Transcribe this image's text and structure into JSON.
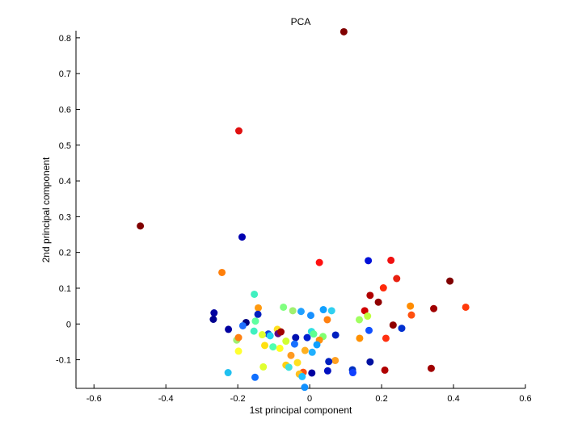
{
  "chart_data": {
    "type": "scatter",
    "title": "PCA",
    "xlabel": "1st principal component",
    "ylabel": "2nd principal component",
    "xlim": [
      -0.65,
      0.6
    ],
    "ylim": [
      -0.18,
      0.82
    ],
    "grid": false,
    "x_ticks": [
      -0.6,
      -0.4,
      -0.2,
      0,
      0.2,
      0.4,
      0.6
    ],
    "x_tick_labels": [
      "-0.6",
      "-0.4",
      "-0.2",
      "0",
      "0.2",
      "0.4",
      "0.6"
    ],
    "y_ticks": [
      -0.1,
      0,
      0.1,
      0.2,
      0.3,
      0.4,
      0.5,
      0.6,
      0.7,
      0.8
    ],
    "y_tick_labels": [
      "-0.1",
      "0",
      "0.1",
      "0.2",
      "0.3",
      "0.4",
      "0.5",
      "0.6",
      "0.7",
      "0.8"
    ],
    "points": [
      {
        "x": 0.095,
        "y": 0.817,
        "color": "#800000"
      },
      {
        "x": -0.197,
        "y": 0.54,
        "color": "#e01010"
      },
      {
        "x": -0.471,
        "y": 0.274,
        "color": "#800000"
      },
      {
        "x": -0.188,
        "y": 0.243,
        "color": "#0000b0"
      },
      {
        "x": 0.027,
        "y": 0.172,
        "color": "#ff1010"
      },
      {
        "x": 0.163,
        "y": 0.177,
        "color": "#0010d8"
      },
      {
        "x": 0.226,
        "y": 0.178,
        "color": "#f01010"
      },
      {
        "x": -0.244,
        "y": 0.144,
        "color": "#ff7f0a"
      },
      {
        "x": 0.242,
        "y": 0.127,
        "color": "#e82010"
      },
      {
        "x": 0.39,
        "y": 0.12,
        "color": "#800000"
      },
      {
        "x": 0.205,
        "y": 0.101,
        "color": "#ff2a0a"
      },
      {
        "x": -0.154,
        "y": 0.083,
        "color": "#40f0c0"
      },
      {
        "x": 0.168,
        "y": 0.08,
        "color": "#b00000"
      },
      {
        "x": 0.191,
        "y": 0.061,
        "color": "#900000"
      },
      {
        "x": 0.28,
        "y": 0.05,
        "color": "#ff8c00"
      },
      {
        "x": 0.434,
        "y": 0.047,
        "color": "#ff3a0a"
      },
      {
        "x": -0.143,
        "y": 0.045,
        "color": "#ff9a10"
      },
      {
        "x": -0.073,
        "y": 0.047,
        "color": "#80ff80"
      },
      {
        "x": -0.047,
        "y": 0.037,
        "color": "#a0f070"
      },
      {
        "x": 0.038,
        "y": 0.04,
        "color": "#10a0ff"
      },
      {
        "x": 0.061,
        "y": 0.037,
        "color": "#30d0f0"
      },
      {
        "x": 0.153,
        "y": 0.037,
        "color": "#d00000"
      },
      {
        "x": 0.345,
        "y": 0.043,
        "color": "#a00000"
      },
      {
        "x": -0.266,
        "y": 0.031,
        "color": "#0000a0"
      },
      {
        "x": -0.144,
        "y": 0.027,
        "color": "#0020c0"
      },
      {
        "x": -0.024,
        "y": 0.035,
        "color": "#20a0ff"
      },
      {
        "x": 0.003,
        "y": 0.024,
        "color": "#1890ff"
      },
      {
        "x": 0.161,
        "y": 0.022,
        "color": "#c0ff40"
      },
      {
        "x": 0.283,
        "y": 0.025,
        "color": "#ff5010"
      },
      {
        "x": -0.268,
        "y": 0.013,
        "color": "#000090"
      },
      {
        "x": -0.151,
        "y": 0.008,
        "color": "#60ffa0"
      },
      {
        "x": 0.049,
        "y": 0.012,
        "color": "#ff8010"
      },
      {
        "x": 0.138,
        "y": 0.012,
        "color": "#a0ff60"
      },
      {
        "x": -0.177,
        "y": 0.004,
        "color": "#000080"
      },
      {
        "x": -0.186,
        "y": -0.005,
        "color": "#2070ff"
      },
      {
        "x": 0.232,
        "y": -0.003,
        "color": "#900000"
      },
      {
        "x": -0.226,
        "y": -0.015,
        "color": "#0000a0"
      },
      {
        "x": -0.155,
        "y": -0.02,
        "color": "#40f0c0"
      },
      {
        "x": -0.115,
        "y": -0.028,
        "color": "#1040e0"
      },
      {
        "x": -0.09,
        "y": -0.015,
        "color": "#ffe020"
      },
      {
        "x": -0.088,
        "y": -0.027,
        "color": "#600080"
      },
      {
        "x": -0.08,
        "y": -0.022,
        "color": "#a00000"
      },
      {
        "x": 0.005,
        "y": -0.021,
        "color": "#30e0e0"
      },
      {
        "x": 0.165,
        "y": -0.018,
        "color": "#1050ff"
      },
      {
        "x": 0.256,
        "y": -0.012,
        "color": "#0030d0"
      },
      {
        "x": -0.132,
        "y": -0.03,
        "color": "#e0ff30"
      },
      {
        "x": -0.11,
        "y": -0.033,
        "color": "#20d0f0"
      },
      {
        "x": 0.011,
        "y": -0.028,
        "color": "#60ff90"
      },
      {
        "x": 0.037,
        "y": -0.035,
        "color": "#80ff70"
      },
      {
        "x": 0.072,
        "y": -0.031,
        "color": "#0020c0"
      },
      {
        "x": -0.039,
        "y": -0.038,
        "color": "#0010b0"
      },
      {
        "x": -0.007,
        "y": -0.038,
        "color": "#0020d0"
      },
      {
        "x": 0.027,
        "y": -0.045,
        "color": "#ff9010"
      },
      {
        "x": 0.139,
        "y": -0.04,
        "color": "#ff9000"
      },
      {
        "x": 0.212,
        "y": -0.04,
        "color": "#ff3010"
      },
      {
        "x": -0.203,
        "y": -0.045,
        "color": "#a0f070"
      },
      {
        "x": -0.198,
        "y": -0.038,
        "color": "#ff8010"
      },
      {
        "x": -0.066,
        "y": -0.048,
        "color": "#d0ff30"
      },
      {
        "x": -0.042,
        "y": -0.056,
        "color": "#1870ff"
      },
      {
        "x": 0.02,
        "y": -0.058,
        "color": "#10a0ff"
      },
      {
        "x": -0.125,
        "y": -0.06,
        "color": "#ffe010"
      },
      {
        "x": -0.102,
        "y": -0.064,
        "color": "#50ffb0"
      },
      {
        "x": -0.083,
        "y": -0.068,
        "color": "#ffff20"
      },
      {
        "x": -0.013,
        "y": -0.074,
        "color": "#ffb020"
      },
      {
        "x": 0.007,
        "y": -0.079,
        "color": "#20b0ff"
      },
      {
        "x": -0.198,
        "y": -0.076,
        "color": "#ffff30"
      },
      {
        "x": -0.052,
        "y": -0.088,
        "color": "#ff9a20"
      },
      {
        "x": 0.071,
        "y": -0.102,
        "color": "#ffa020"
      },
      {
        "x": 0.053,
        "y": -0.105,
        "color": "#0020c0"
      },
      {
        "x": 0.168,
        "y": -0.106,
        "color": "#0010a0"
      },
      {
        "x": -0.034,
        "y": -0.108,
        "color": "#ffe020"
      },
      {
        "x": -0.066,
        "y": -0.115,
        "color": "#ffd010"
      },
      {
        "x": -0.058,
        "y": -0.121,
        "color": "#40e0e0"
      },
      {
        "x": -0.129,
        "y": -0.12,
        "color": "#e0ff30"
      },
      {
        "x": 0.338,
        "y": -0.124,
        "color": "#a00000"
      },
      {
        "x": 0.119,
        "y": -0.128,
        "color": "#0030c0"
      },
      {
        "x": 0.209,
        "y": -0.129,
        "color": "#b00000"
      },
      {
        "x": 0.05,
        "y": -0.131,
        "color": "#0010c0"
      },
      {
        "x": 0.12,
        "y": -0.136,
        "color": "#1040ff"
      },
      {
        "x": -0.018,
        "y": -0.135,
        "color": "#ff5010"
      },
      {
        "x": 0.006,
        "y": -0.137,
        "color": "#0000a0"
      },
      {
        "x": -0.029,
        "y": -0.14,
        "color": "#ffc020"
      },
      {
        "x": -0.021,
        "y": -0.147,
        "color": "#20c0ff"
      },
      {
        "x": -0.227,
        "y": -0.136,
        "color": "#20c0f0"
      },
      {
        "x": -0.152,
        "y": -0.149,
        "color": "#1070ff"
      },
      {
        "x": -0.014,
        "y": -0.177,
        "color": "#1090ff"
      }
    ]
  }
}
